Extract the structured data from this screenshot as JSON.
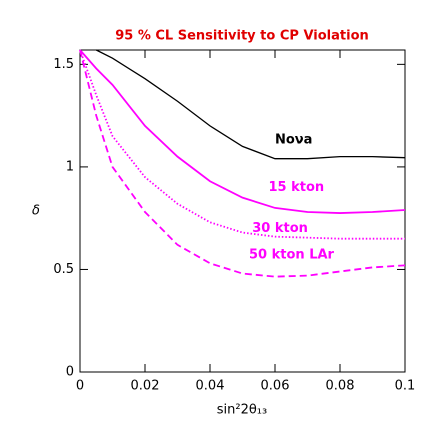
{
  "chart_data": {
    "type": "line",
    "title": "95 % CL Sensitivity to CP Violation",
    "x_label": "sin²2θ₁₃",
    "y_label": "δ",
    "x": [
      0,
      0.005,
      0.01,
      0.02,
      0.03,
      0.04,
      0.05,
      0.06,
      0.07,
      0.08,
      0.09,
      0.1
    ],
    "series": [
      {
        "name": "Noνa",
        "color": "#000000",
        "dash": "solid",
        "values": [
          null,
          1.57,
          1.53,
          1.43,
          1.32,
          1.2,
          1.1,
          1.04,
          1.04,
          1.05,
          1.05,
          1.045
        ]
      },
      {
        "name": "15 kton",
        "color": "#ff00ff",
        "dash": "solid",
        "values": [
          1.57,
          1.48,
          1.4,
          1.2,
          1.05,
          0.93,
          0.85,
          0.8,
          0.78,
          0.775,
          0.78,
          0.79
        ]
      },
      {
        "name": "30 kton",
        "color": "#ff00ff",
        "dash": "dotted",
        "values": [
          1.57,
          1.35,
          1.15,
          0.95,
          0.82,
          0.73,
          0.68,
          0.66,
          0.655,
          0.65,
          0.65,
          0.65
        ]
      },
      {
        "name": "50 kton LAr",
        "color": "#ff00ff",
        "dash": "dashed",
        "values": [
          1.57,
          1.25,
          1.0,
          0.78,
          0.62,
          0.53,
          0.48,
          0.465,
          0.47,
          0.49,
          0.51,
          0.52
        ]
      }
    ],
    "xlim": [
      0,
      0.1
    ],
    "ylim": [
      0,
      1.57
    ],
    "xticks": [
      0,
      0.02,
      0.04,
      0.06,
      0.08,
      0.1
    ],
    "yticks": [
      0,
      0.5,
      1,
      1.5
    ]
  }
}
